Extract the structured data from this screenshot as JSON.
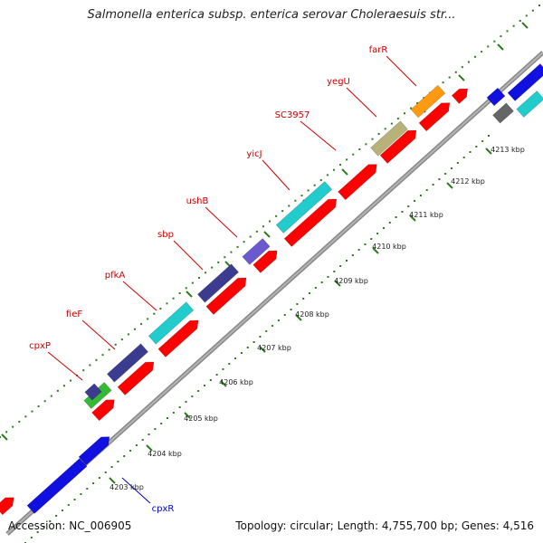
{
  "title": "Salmonella enterica subsp. enterica serovar Choleraesuis str...",
  "footer": {
    "accession": "Accession: NC_006905",
    "topology": "Topology: circular; Length: 4,755,700 bp; Genes: 4,516"
  },
  "ticks": [
    "4203 kbp",
    "4204 kbp",
    "4205 kbp",
    "4206 kbp",
    "4207 kbp",
    "4208 kbp",
    "4209 kbp",
    "4210 kbp",
    "4211 kbp",
    "4212 kbp",
    "4213 kbp"
  ],
  "gene_labels": [
    "cpxP",
    "fieF",
    "pfkA",
    "sbp",
    "ushB",
    "yicJ",
    "SC3957",
    "yegU",
    "farR",
    "cpxR"
  ],
  "colors": {
    "label_red": "#cc0000",
    "label_blue": "#0000cc",
    "tick_green": "#2f7a1f",
    "backbone": "#999999",
    "forward_red": "#ff0000",
    "reverse_blue": "#1010e0",
    "cyan": "#22cccc",
    "navy": "#3b3b8f",
    "khaki": "#b8b27a",
    "orange": "#ff9a10",
    "green": "#33bb33",
    "grey": "#666666"
  }
}
